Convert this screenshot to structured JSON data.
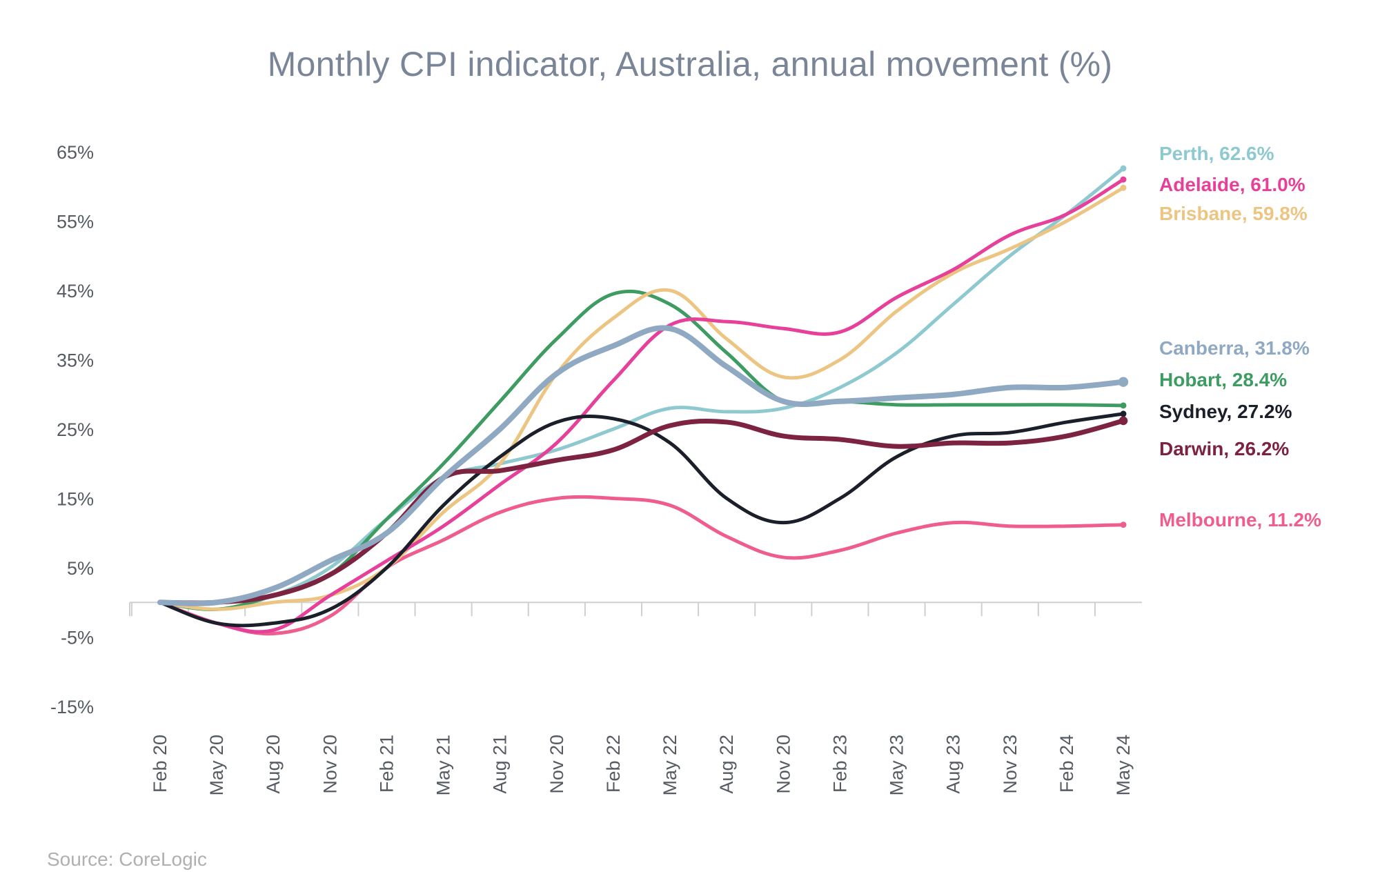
{
  "title": "Monthly CPI indicator, Australia, annual movement (%)",
  "source": "Source: CoreLogic",
  "chart_data": {
    "type": "line",
    "title": "Monthly CPI indicator, Australia, annual movement (%)",
    "xlabel": "",
    "ylabel": "",
    "ylim": [
      -15,
      65
    ],
    "yticks": [
      65,
      55,
      45,
      35,
      25,
      15,
      5,
      -5,
      -15
    ],
    "ytick_labels": [
      "65%",
      "55%",
      "45%",
      "35%",
      "25%",
      "15%",
      "5%",
      "-5%",
      "-15%"
    ],
    "categories": [
      "Feb 20",
      "May 20",
      "Aug 20",
      "Nov 20",
      "Feb 21",
      "May 21",
      "Aug 21",
      "Nov 20",
      "Feb 22",
      "May 22",
      "Aug 22",
      "Nov 20",
      "Feb 23",
      "May 23",
      "Aug 23",
      "Nov 23",
      "Feb 24",
      "May 24"
    ],
    "grid": false,
    "legend": "right",
    "series": [
      {
        "name": "Perth",
        "label": "Perth, 62.6%",
        "color": "#8ec9cf",
        "values": [
          0,
          -1,
          1,
          5,
          12,
          18,
          20,
          22,
          25,
          28,
          27.5,
          28,
          31,
          36,
          43,
          50,
          56,
          62.6
        ]
      },
      {
        "name": "Adelaide",
        "label": "Adelaide, 61.0%",
        "color": "#e6409a",
        "values": [
          0,
          -3,
          -4,
          1,
          6,
          11,
          17,
          23,
          32,
          40,
          40.5,
          39.5,
          39,
          44,
          48,
          53,
          56,
          61.0
        ]
      },
      {
        "name": "Brisbane",
        "label": "Brisbane, 59.8%",
        "color": "#ecc583",
        "values": [
          0,
          -1,
          0,
          1,
          5,
          13,
          20,
          33,
          41,
          45,
          38,
          32.5,
          35,
          42,
          47.5,
          51,
          55,
          59.8
        ]
      },
      {
        "name": "Canberra",
        "label": "Canberra, 31.8%",
        "color": "#8fa9c3",
        "values": [
          0,
          0,
          2,
          6,
          10,
          18,
          25,
          33,
          37,
          39.5,
          34,
          29,
          29,
          29.5,
          30,
          31,
          31,
          31.8
        ]
      },
      {
        "name": "Hobart",
        "label": "Hobart, 28.4%",
        "color": "#3e9c63",
        "values": [
          0,
          -1,
          1,
          4,
          12,
          20,
          29,
          38,
          44.5,
          43,
          36,
          29,
          29,
          28.5,
          28.5,
          28.5,
          28.5,
          28.4
        ]
      },
      {
        "name": "Sydney",
        "label": "Sydney, 27.2%",
        "color": "#1b1f2a",
        "values": [
          0,
          -3,
          -3,
          -1,
          5,
          14,
          21,
          26,
          26.5,
          23,
          15,
          11.5,
          15,
          21,
          24,
          24.5,
          26,
          27.2
        ]
      },
      {
        "name": "Darwin",
        "label": "Darwin, 26.2%",
        "color": "#7b2340",
        "values": [
          0,
          0,
          1,
          4,
          10,
          18,
          19,
          20.5,
          22,
          25.5,
          26,
          24,
          23.5,
          22.5,
          23,
          23,
          24,
          26.2
        ]
      },
      {
        "name": "Melbourne",
        "label": "Melbourne, 11.2%",
        "color": "#ee5d8e",
        "values": [
          0,
          -3,
          -4.5,
          -2,
          5,
          9,
          13,
          15,
          15,
          14,
          9.5,
          6.5,
          7.5,
          10,
          11.5,
          11,
          11,
          11.2
        ]
      }
    ]
  }
}
